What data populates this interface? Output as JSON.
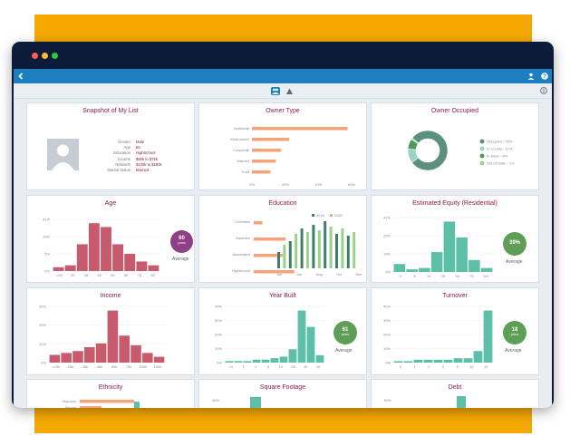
{
  "colors": {
    "frame": "#f5a800",
    "window": "#0d1b3a",
    "appbar": "#1d7fc0",
    "pink": "#c85a6e",
    "orange": "#f6a27a",
    "teal": "#5ebfa9",
    "dark_green": "#3f7f6a",
    "light_green": "#9bd18c",
    "purple": "#8e3f86",
    "badge_green": "#5e9e57",
    "title": "#8a1c4a"
  },
  "toolbar": {
    "back_icon": "chevron-left-icon",
    "user_icon": "user-icon",
    "help_icon": "help-icon",
    "info_icon": "info-icon",
    "tab_people_icon": "people-icon",
    "tab_chart_icon": "chart-icon"
  },
  "cards": {
    "snapshot": {
      "title": "Snapshot of My List",
      "rows": [
        {
          "label": "Gender",
          "value": "Male"
        },
        {
          "label": "Age",
          "value": "56"
        },
        {
          "label": "Education",
          "value": "HighSchool"
        },
        {
          "label": "Income",
          "value": "$50k to $75k"
        },
        {
          "label": "Networth",
          "value": "$100k to $250k"
        },
        {
          "label": "Marital Status",
          "value": "Married"
        }
      ]
    },
    "owner_type": {
      "title": "Owner Type",
      "categories": [
        "Individual",
        "Multi-owner",
        "Corporate",
        "Married",
        "Trust"
      ],
      "values": [
        36,
        14,
        11,
        9,
        7
      ],
      "ticks": [
        "0%",
        "20%",
        "40%",
        "60%"
      ]
    },
    "owner_occupied": {
      "title": "Owner Occupied",
      "legend": [
        "Occupied - 75%",
        "In County - 11%",
        "In State - 8%",
        "Out of State - 1%"
      ],
      "values": [
        75,
        11,
        8,
        1
      ]
    },
    "age": {
      "title": "Age",
      "yticks": [
        "31%",
        "15%",
        "5%",
        "0%"
      ],
      "xticks": [
        "<25",
        "25",
        "35",
        "45",
        "55",
        "65",
        "75",
        "85"
      ],
      "values": [
        2,
        3,
        14,
        25,
        23,
        14,
        9,
        5,
        3
      ],
      "badge": "60",
      "badge_sub": "years",
      "avg": "Average"
    },
    "education": {
      "title": "Education",
      "legend": [
        "2018",
        "2020"
      ],
      "categories": [
        "Overview",
        "Bachelor",
        "Associated",
        "Highschool"
      ],
      "values": [
        6,
        22,
        20,
        28
      ],
      "xticks": [
        "Jan",
        "Jun",
        "Aug",
        "Oct",
        "Dec"
      ]
    },
    "equity": {
      "title": "Estimated Equity (Residential)",
      "yticks": [
        "41%",
        "20%",
        "10%",
        "0%"
      ],
      "xticks": [
        "0",
        "5",
        "10",
        "25",
        "50",
        "75",
        "100"
      ],
      "values": [
        6,
        2,
        3,
        15,
        38,
        26,
        9,
        3
      ],
      "badge": "39%",
      "avg": "Average"
    },
    "income": {
      "title": "Income",
      "yticks": [
        "30%",
        "20%",
        "10%",
        "0%"
      ],
      "xticks": [
        "<15k",
        "15k",
        "25k",
        "35k",
        "50k",
        "75k",
        "100k",
        "150k"
      ],
      "values": [
        4,
        5,
        6,
        8,
        10,
        27,
        14,
        9,
        5,
        3
      ],
      "badge": "",
      "avg": ""
    },
    "year_built": {
      "title": "Year Built",
      "yticks": [
        "40%",
        "30%",
        "20%",
        "10%",
        "0%"
      ],
      "xticks": [
        "<1",
        "1",
        "2",
        "5",
        "10",
        "20",
        "30",
        "40"
      ],
      "values": [
        1,
        1,
        1,
        2,
        2,
        3,
        4,
        9,
        35,
        24,
        5
      ],
      "badge": "61",
      "badge_sub": "years",
      "avg": "Average"
    },
    "turnover": {
      "title": "Turnover",
      "yticks": [
        "40%",
        "30%",
        "20%",
        "10%",
        "0%"
      ],
      "xticks": [
        "0",
        "1",
        "2",
        "3",
        "5",
        "10",
        "15"
      ],
      "values": [
        1,
        1,
        2,
        2,
        2,
        2,
        3,
        3,
        8,
        36
      ],
      "badge": "18",
      "badge_sub": "years",
      "avg": "Average"
    },
    "ethnicity": {
      "title": "Ethnicity",
      "categories": [
        "Hispanic",
        "African",
        "Asian"
      ],
      "values": [
        30,
        12,
        6
      ]
    },
    "square_footage": {
      "title": "Square Footage",
      "yticks": [
        "40%",
        "30%"
      ],
      "values": [
        8,
        36,
        20,
        14
      ]
    },
    "debt": {
      "title": "Debt",
      "yticks": [
        "50%"
      ],
      "values": [
        12,
        40,
        6
      ]
    }
  }
}
